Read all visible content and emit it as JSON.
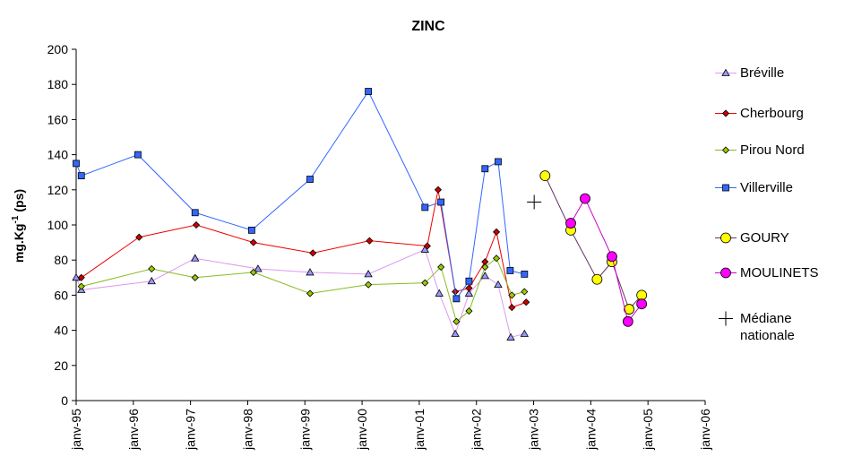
{
  "chart_data": {
    "type": "line",
    "title": "ZINC",
    "ylabel": [
      "mg.Kg",
      "-1",
      "(ps)"
    ],
    "xlim": [
      1995,
      2006
    ],
    "xticks": [
      {
        "value": 1995,
        "label": "janv-95"
      },
      {
        "value": 1996,
        "label": "janv-96"
      },
      {
        "value": 1997,
        "label": "janv-97"
      },
      {
        "value": 1998,
        "label": "janv-98"
      },
      {
        "value": 1999,
        "label": "janv-99"
      },
      {
        "value": 2000,
        "label": "janv-00"
      },
      {
        "value": 2001,
        "label": "janv-01"
      },
      {
        "value": 2002,
        "label": "janv-02"
      },
      {
        "value": 2003,
        "label": "janv-03"
      },
      {
        "value": 2004,
        "label": "janv-04"
      },
      {
        "value": 2005,
        "label": "janv-05"
      },
      {
        "value": 2006,
        "label": "janv-06"
      }
    ],
    "ylim": [
      0,
      200
    ],
    "yticks": [
      0,
      20,
      40,
      60,
      80,
      100,
      120,
      140,
      160,
      180,
      200
    ],
    "grid": false,
    "legend": "right",
    "series": [
      {
        "name": "Bréville",
        "color": "#9999ff",
        "line_color": "#dd99ee",
        "marker": "triangle",
        "x": [
          1995.0,
          1995.09,
          1996.32,
          1997.08,
          1998.18,
          1999.09,
          2000.11,
          2001.1,
          2001.35,
          2001.63,
          2001.87,
          2002.15,
          2002.38,
          2002.6,
          2002.84
        ],
        "values": [
          70,
          63,
          68,
          81,
          75,
          73,
          72,
          86,
          61,
          38,
          61,
          71,
          66,
          36,
          38
        ]
      },
      {
        "name": "Cherbourg",
        "color": "#cc0000",
        "line_color": "#ee0000",
        "marker": "diamond",
        "x": [
          1995.09,
          1996.1,
          1997.1,
          1998.1,
          1999.14,
          2000.13,
          2001.14,
          2001.33,
          2001.63,
          2001.87,
          2002.15,
          2002.35,
          2002.62,
          2002.87
        ],
        "values": [
          70,
          93,
          100,
          90,
          84,
          91,
          88,
          120,
          62,
          64,
          79,
          96,
          53,
          56
        ]
      },
      {
        "name": "Pirou Nord",
        "color": "#99cc00",
        "line_color": "#88bb22",
        "marker": "diamond",
        "x": [
          1995.09,
          1996.32,
          1997.08,
          1998.1,
          1999.09,
          2000.11,
          2001.1,
          2001.38,
          2001.65,
          2001.87,
          2002.15,
          2002.35,
          2002.62,
          2002.84
        ],
        "values": [
          65,
          75,
          70,
          73,
          61,
          66,
          67,
          76,
          45,
          51,
          76,
          81,
          60,
          62
        ]
      },
      {
        "name": "Villerville",
        "color": "#3366ff",
        "line_color": "#3366ff",
        "marker": "square",
        "x": [
          1995.0,
          1995.09,
          1996.08,
          1997.08,
          1998.07,
          1999.09,
          2000.11,
          2001.1,
          2001.38,
          2001.65,
          2001.87,
          2002.15,
          2002.38,
          2002.59,
          2002.84
        ],
        "values": [
          135,
          128,
          140,
          107,
          97,
          126,
          176,
          110,
          113,
          58,
          68,
          132,
          136,
          74,
          72
        ]
      },
      {
        "name": "GOURY",
        "color": "#ffff00",
        "line_color": "#663366",
        "marker": "circle",
        "x": [
          2003.2,
          2003.65,
          2004.11,
          2004.37,
          2004.67,
          2004.89
        ],
        "values": [
          128,
          97,
          69,
          79,
          52,
          60
        ]
      },
      {
        "name": "MOULINETS",
        "color": "#ff00ff",
        "line_color": "#cc00cc",
        "marker": "circle",
        "x": [
          2003.65,
          2003.9,
          2004.37,
          2004.65,
          2004.89
        ],
        "values": [
          101,
          115,
          82,
          45,
          55
        ]
      },
      {
        "name": "Médiane nationale",
        "color": "#000000",
        "line_color": null,
        "marker": "plus",
        "x": [
          2003.01
        ],
        "values": [
          113
        ]
      }
    ]
  }
}
